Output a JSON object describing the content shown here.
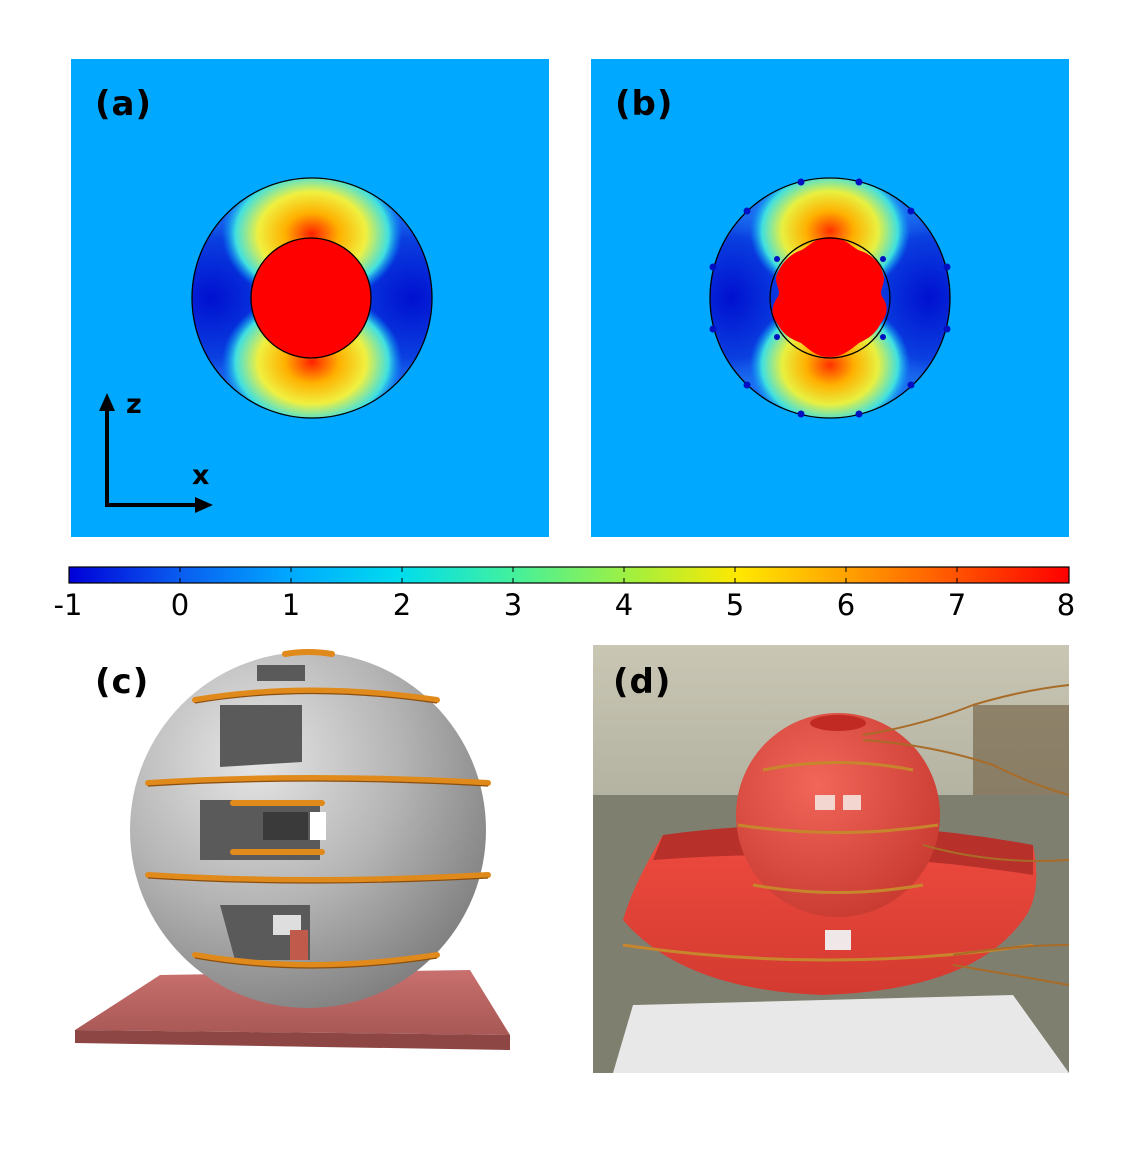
{
  "panels": {
    "a": {
      "label": "(a)"
    },
    "b": {
      "label": "(b)"
    },
    "c": {
      "label": "(c)"
    },
    "d": {
      "label": "(d)"
    }
  },
  "axes": {
    "z": "z",
    "x": "x"
  },
  "colorbar": {
    "ticks": [
      "-1",
      "0",
      "1",
      "2",
      "3",
      "4",
      "5",
      "6",
      "7",
      "8"
    ],
    "min": -1,
    "max": 8,
    "colors": [
      "#0000d8",
      "#0a5cf0",
      "#00a8ff",
      "#00dcee",
      "#40f0a0",
      "#a0f040",
      "#ffe800",
      "#ffa000",
      "#ff5000",
      "#ff0000"
    ]
  }
}
